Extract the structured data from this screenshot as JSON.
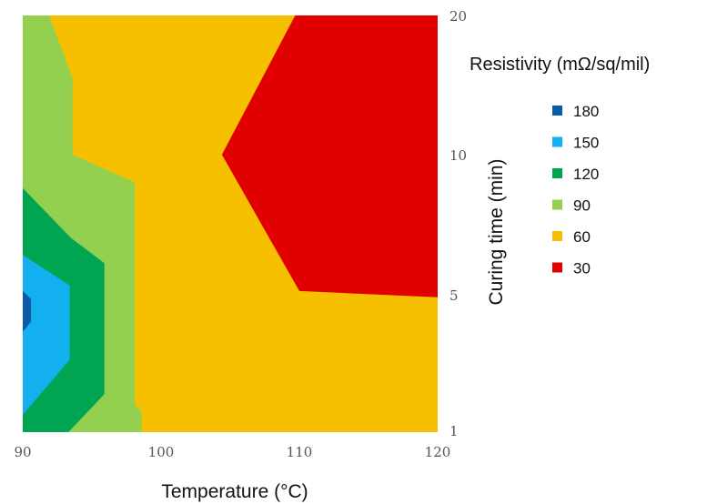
{
  "chart_data": {
    "type": "contour",
    "title": "",
    "xlabel": "Temperature (°C)",
    "ylabel": "Curing time (min)",
    "x_ticks": [
      "90",
      "100",
      "110",
      "120"
    ],
    "y_ticks": [
      "1",
      "5",
      "10",
      "20"
    ],
    "xlim": [
      90,
      120
    ],
    "y_axis_position": "right",
    "legend": {
      "title": "Resistivity (mΩ/sq/mil)",
      "position": "right",
      "items": [
        {
          "label": "180",
          "color": "#0b5aa6"
        },
        {
          "label": "150",
          "color": "#12b0ef"
        },
        {
          "label": "120",
          "color": "#00a551"
        },
        {
          "label": "90",
          "color": "#93d050"
        },
        {
          "label": "60",
          "color": "#f6c000"
        },
        {
          "label": "30",
          "color": "#e00000"
        }
      ]
    },
    "levels": [
      {
        "value": 60,
        "color": "#f6c000",
        "polygon": [
          [
            90,
            20
          ],
          [
            120,
            20
          ],
          [
            120,
            1
          ],
          [
            90,
            1
          ]
        ]
      },
      {
        "value": 30,
        "color": "#e00000",
        "polygon": [
          [
            109.7,
            20
          ],
          [
            120,
            20
          ],
          [
            120,
            4.9
          ],
          [
            110,
            5.1
          ],
          [
            104.4,
            10
          ]
        ]
      },
      {
        "value": 90,
        "color": "#93d050",
        "polygon": [
          [
            90,
            20
          ],
          [
            91.9,
            20
          ],
          [
            93.6,
            15.5
          ],
          [
            93.6,
            10
          ],
          [
            98.1,
            9
          ],
          [
            98.1,
            1.8
          ],
          [
            98.6,
            1.6
          ],
          [
            98.6,
            1
          ],
          [
            90,
            1
          ]
        ]
      },
      {
        "value": 120,
        "color": "#00a551",
        "polygon": [
          [
            90,
            8.8
          ],
          [
            93.5,
            7
          ],
          [
            95.9,
            6.1
          ],
          [
            95.9,
            2.1
          ],
          [
            93.3,
            1
          ],
          [
            90,
            1
          ]
        ]
      },
      {
        "value": 150,
        "color": "#12b0ef",
        "polygon": [
          [
            90,
            6.4
          ],
          [
            93.4,
            5.3
          ],
          [
            93.4,
            3.1
          ],
          [
            90,
            1.5
          ]
        ]
      },
      {
        "value": 180,
        "color": "#0b5aa6",
        "polygon": [
          [
            90,
            5.1
          ],
          [
            90.6,
            4.85
          ],
          [
            90.6,
            4.2
          ],
          [
            90,
            3.9
          ]
        ]
      }
    ]
  }
}
